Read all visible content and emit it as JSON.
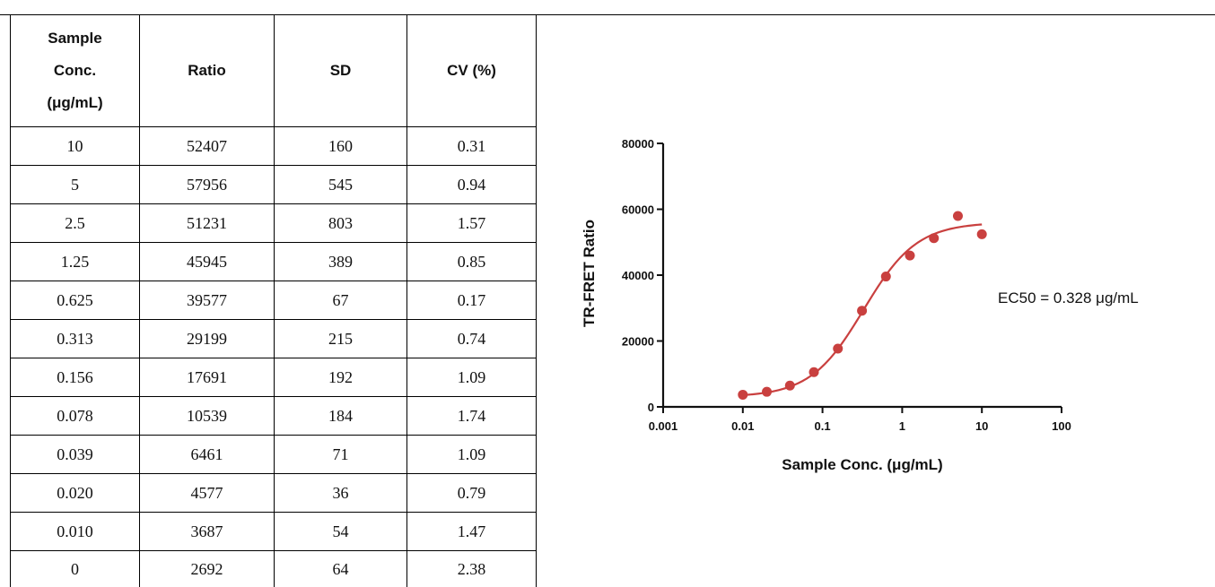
{
  "table": {
    "headers": [
      {
        "lines": [
          "Sample",
          "Conc.",
          "(μg/mL)"
        ]
      },
      {
        "lines": [
          "Ratio"
        ]
      },
      {
        "lines": [
          "SD"
        ]
      },
      {
        "lines": [
          "CV (%)"
        ]
      }
    ],
    "rows": [
      [
        "10",
        "52407",
        "160",
        "0.31"
      ],
      [
        "5",
        "57956",
        "545",
        "0.94"
      ],
      [
        "2.5",
        "51231",
        "803",
        "1.57"
      ],
      [
        "1.25",
        "45945",
        "389",
        "0.85"
      ],
      [
        "0.625",
        "39577",
        "67",
        "0.17"
      ],
      [
        "0.313",
        "29199",
        "215",
        "0.74"
      ],
      [
        "0.156",
        "17691",
        "192",
        "1.09"
      ],
      [
        "0.078",
        "10539",
        "184",
        "1.74"
      ],
      [
        "0.039",
        "6461",
        "71",
        "1.09"
      ],
      [
        "0.020",
        "4577",
        "36",
        "0.79"
      ],
      [
        "0.010",
        "3687",
        "54",
        "1.47"
      ],
      [
        "0",
        "2692",
        "64",
        "2.38"
      ]
    ]
  },
  "chart_data": {
    "type": "scatter",
    "title": "",
    "xlabel": "Sample Conc. (μg/mL)",
    "ylabel": "TR-FRET Ratio",
    "x_scale": "log",
    "xlim": [
      0.001,
      100
    ],
    "ylim": [
      0,
      80000
    ],
    "x_ticks": [
      "0.001",
      "0.01",
      "0.1",
      "1",
      "10",
      "100"
    ],
    "y_ticks": [
      "0",
      "20000",
      "40000",
      "60000",
      "80000"
    ],
    "grid": false,
    "color": "#c9403f",
    "annotation": "EC50 = 0.328 μg/mL",
    "series": [
      {
        "x": [
          10,
          5,
          2.5,
          1.25,
          0.625,
          0.313,
          0.156,
          0.078,
          0.039,
          0.02,
          0.01
        ],
        "y": [
          52407,
          57956,
          51231,
          45945,
          39577,
          29199,
          17691,
          10539,
          6461,
          4577,
          3687
        ]
      }
    ],
    "fit": {
      "model": "4PL",
      "bottom": 3000,
      "top": 56000,
      "ec50": 0.328,
      "hill": 1.3
    }
  }
}
